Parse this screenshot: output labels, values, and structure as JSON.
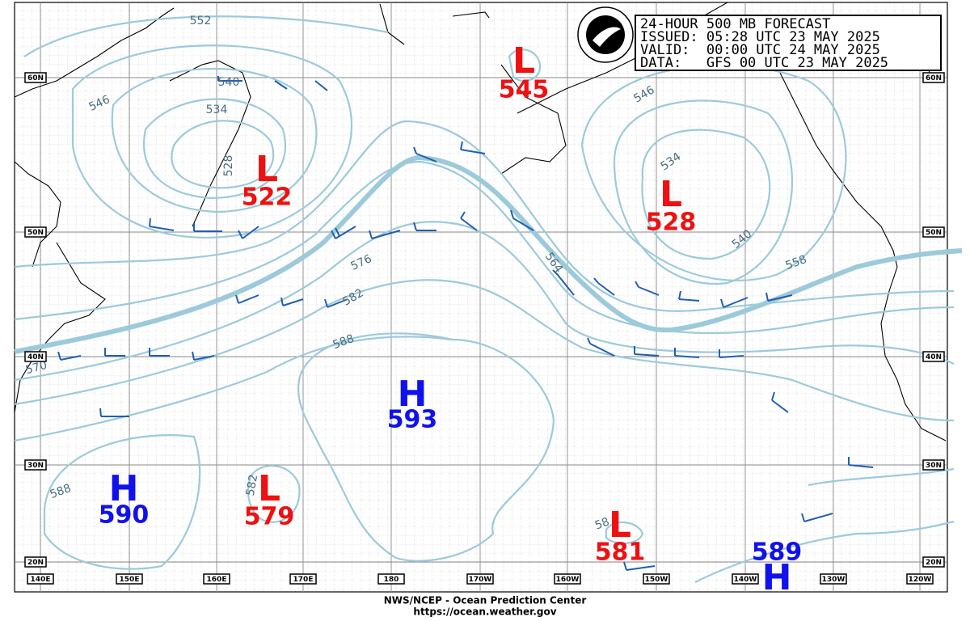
{
  "header": {
    "lines": [
      "24-HOUR 500 MB FORECAST",
      "ISSUED: 05:28 UTC 23 MAY 2025",
      "VALID:  00:00 UTC 24 MAY 2025",
      "DATA:   GFS 00 UTC 23 MAY 2025"
    ]
  },
  "centers": [
    {
      "kind": "L",
      "value": 522
    },
    {
      "kind": "L",
      "value": 528
    },
    {
      "kind": "L",
      "value": 545
    },
    {
      "kind": "H",
      "value": 593
    },
    {
      "kind": "H",
      "value": 590
    },
    {
      "kind": "L",
      "value": 579
    },
    {
      "kind": "L",
      "value": 581
    },
    {
      "kind": "H",
      "value": 589
    }
  ],
  "contour_labels": [
    "552",
    "546",
    "540",
    "534",
    "528",
    "576",
    "582",
    "588",
    "570",
    "588",
    "582",
    "564",
    "558",
    "540",
    "534",
    "546",
    "58"
  ],
  "lat_labels": [
    "60N",
    "50N",
    "40N",
    "30N",
    "20N"
  ],
  "lon_labels": [
    "140E",
    "150E",
    "160E",
    "170E",
    "180",
    "170W",
    "160W",
    "150W",
    "140W",
    "130W",
    "120W"
  ],
  "footer": [
    "NWS/NCEP - Ocean Prediction Center",
    "https://ocean.weather.gov"
  ]
}
